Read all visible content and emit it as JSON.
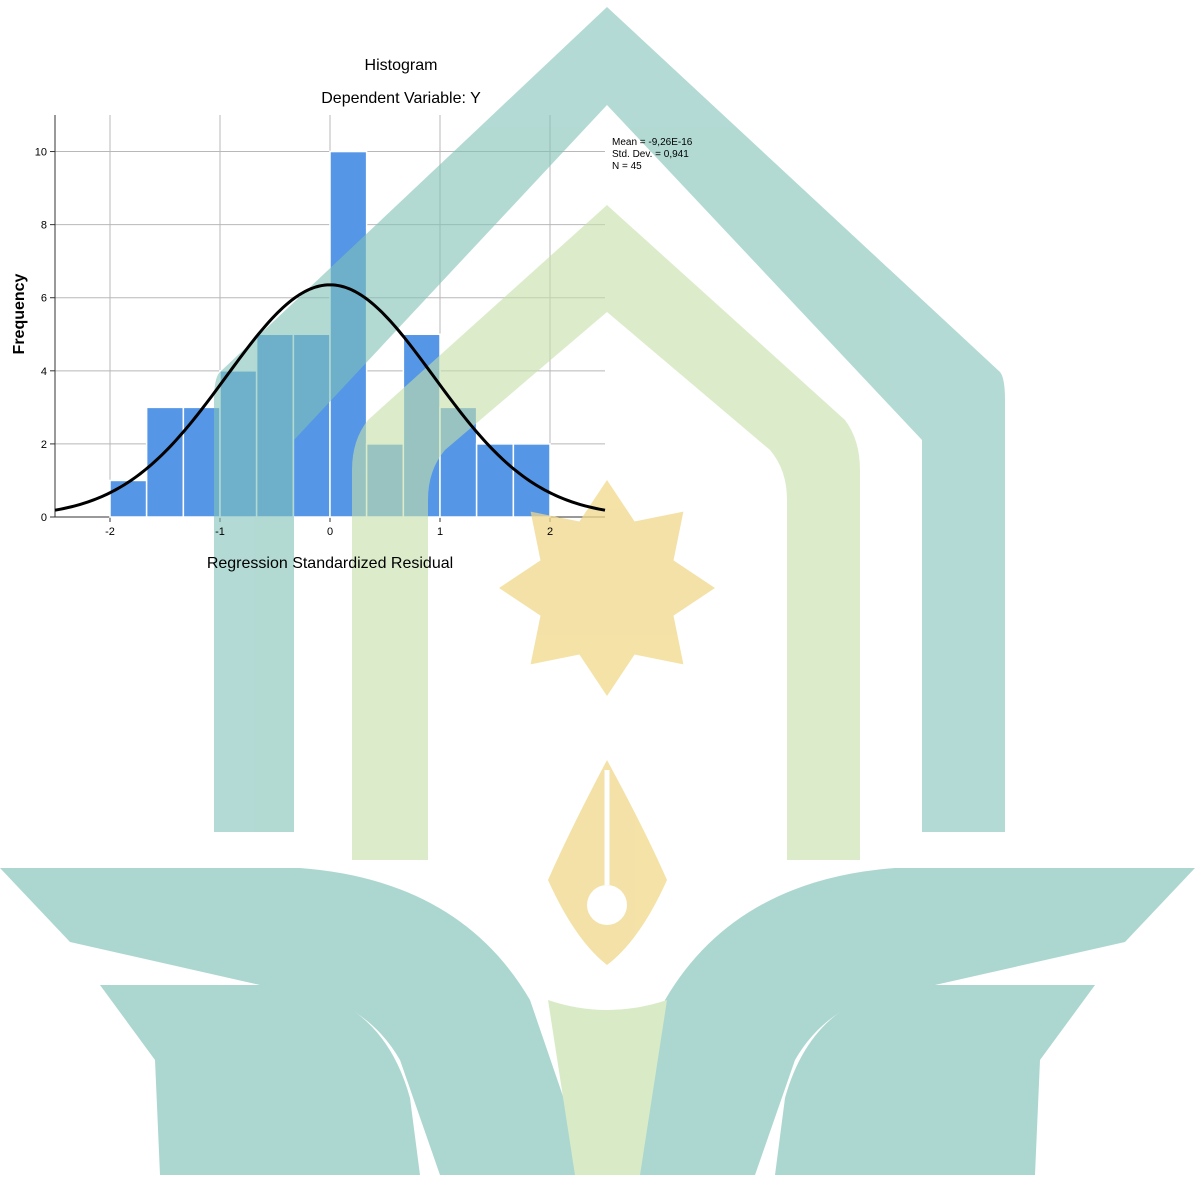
{
  "chart_data": {
    "type": "bar",
    "title": "Histogram",
    "subtitle": "Dependent Variable: Y",
    "xlabel": "Regression Standardized Residual",
    "ylabel": "Frequency",
    "xlim": [
      -2.5,
      2.5
    ],
    "ylim": [
      0,
      11
    ],
    "grid": true,
    "x_ticks": [
      -2,
      -1,
      0,
      1,
      2
    ],
    "x_tick_labels": [
      "-2",
      "-1",
      "0",
      "1",
      "2"
    ],
    "y_ticks": [
      0,
      2,
      4,
      6,
      8,
      10
    ],
    "y_tick_labels": [
      "0",
      "2",
      "4",
      "6",
      "8",
      "10"
    ],
    "bins": [
      {
        "from": -2.0,
        "to": -1.667,
        "value": 1
      },
      {
        "from": -1.667,
        "to": -1.333,
        "value": 3
      },
      {
        "from": -1.333,
        "to": -1.0,
        "value": 3
      },
      {
        "from": -1.0,
        "to": -0.667,
        "value": 4
      },
      {
        "from": -0.667,
        "to": -0.333,
        "value": 5
      },
      {
        "from": -0.333,
        "to": 0.0,
        "value": 5
      },
      {
        "from": 0.0,
        "to": 0.333,
        "value": 10
      },
      {
        "from": 0.333,
        "to": 0.667,
        "value": 2
      },
      {
        "from": 0.667,
        "to": 1.0,
        "value": 5
      },
      {
        "from": 1.0,
        "to": 1.333,
        "value": 3
      },
      {
        "from": 1.333,
        "to": 1.667,
        "value": 2
      },
      {
        "from": 1.667,
        "to": 2.0,
        "value": 2
      }
    ],
    "normal_curve": {
      "mean": 0,
      "std_dev": 0.941,
      "n": 45,
      "bin_width": 0.333
    },
    "stats_lines": [
      "Mean = -9,26E-16",
      "Std. Dev. = 0,941",
      "N = 45"
    ],
    "legend_position": "top-right"
  },
  "colors": {
    "bar_fill": "#5596e6",
    "bar_stroke": "#ffffff",
    "grid": "#b8b8b8",
    "axis": "#333333",
    "curve": "#000000",
    "text": "#000000",
    "watermark_teal": "#b2d8d2",
    "watermark_green": "#d8ecc2",
    "watermark_gold": "#f6e6b4"
  }
}
